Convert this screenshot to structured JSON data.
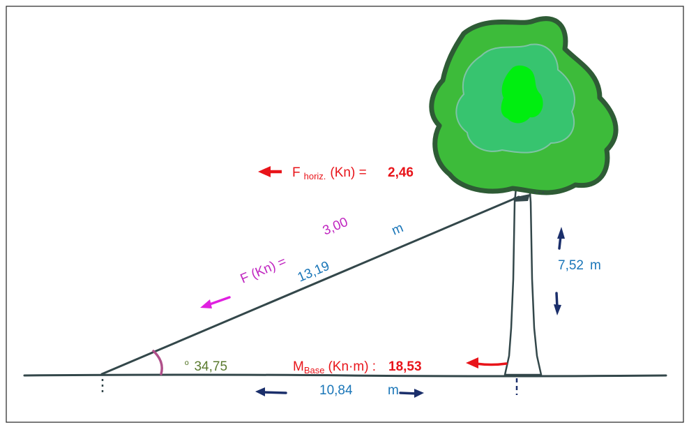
{
  "diagram": {
    "f_horiz": {
      "label_main": "F",
      "label_sub": "horiz.",
      "label_unit": "(Kn) =",
      "value": "2,46"
    },
    "f_cable": {
      "label": "F (Kn) =",
      "value": "3,00"
    },
    "cable_length": {
      "value": "13,19",
      "unit": "m"
    },
    "height": {
      "value": "7,52",
      "unit": "m"
    },
    "angle": {
      "prefix": "º",
      "value": "34,75"
    },
    "moment": {
      "label_main": "M",
      "label_sub": "Base",
      "label_unit": "(Kn·m) :",
      "value": "18,53"
    },
    "base_distance": {
      "value": "10,84",
      "unit": "m"
    },
    "colors": {
      "red": "#e8141a",
      "magenta": "#c026c0",
      "blue": "#1a76b8",
      "navy": "#1b2f6b",
      "olive": "#5a7a2e",
      "line": "#33474a",
      "foliage_outer": "#2e5b35",
      "foliage_main": "#3dbb3a",
      "foliage_mid": "#37c46f",
      "foliage_inner": "#00ee10"
    }
  }
}
